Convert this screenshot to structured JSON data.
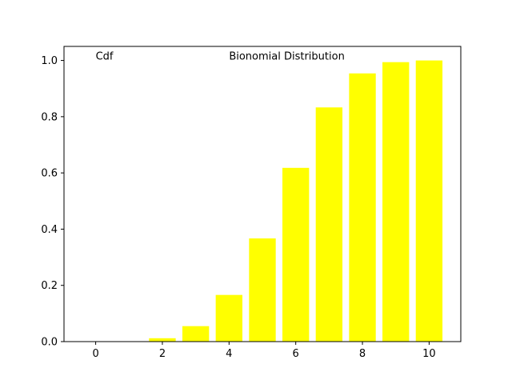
{
  "chart_data": {
    "type": "bar",
    "x": [
      0,
      1,
      2,
      3,
      4,
      5,
      6,
      7,
      8,
      9,
      10
    ],
    "values": [
      0.0,
      0.0,
      0.012,
      0.055,
      0.166,
      0.367,
      0.618,
      0.833,
      0.954,
      0.994,
      1.0
    ],
    "bar_color": "#ffff00",
    "xlim": [
      -0.95,
      10.95
    ],
    "ylim": [
      0,
      1.05
    ],
    "x_ticks": [
      0,
      2,
      4,
      6,
      8,
      10
    ],
    "x_tick_labels": [
      "0",
      "2",
      "4",
      "6",
      "8",
      "10"
    ],
    "y_ticks": [
      0.0,
      0.2,
      0.4,
      0.6,
      0.8,
      1.0
    ],
    "y_tick_labels": [
      "0.0",
      "0.2",
      "0.4",
      "0.6",
      "0.8",
      "1.0"
    ],
    "annotations": [
      {
        "text": "Cdf",
        "x": 0,
        "y": 1.0
      },
      {
        "text": "Bionomial Distribution",
        "x": 4,
        "y": 1.0
      }
    ],
    "grid": false,
    "legend": "none",
    "title": "",
    "xlabel": "",
    "ylabel": ""
  }
}
